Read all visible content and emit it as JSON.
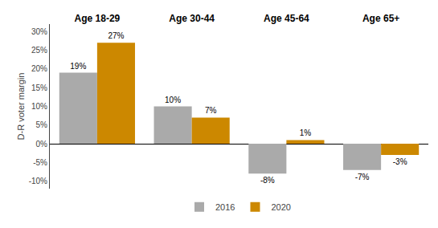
{
  "chart_data": {
    "type": "bar",
    "categories": [
      "Age 18-29",
      "Age 30-44",
      "Age 45-64",
      "Age 65+"
    ],
    "series": [
      {
        "name": "2016",
        "color": "#aaaaaa",
        "values": [
          19,
          10,
          -8,
          -7
        ],
        "value_labels": [
          "19%",
          "10%",
          "-8%",
          "-7%"
        ]
      },
      {
        "name": "2020",
        "color": "#CC8800",
        "values": [
          27,
          7,
          1,
          -3
        ],
        "value_labels": [
          "27%",
          "7%",
          "1%",
          "-3%"
        ]
      }
    ],
    "ylabel": "D-R voter margin",
    "ylim": [
      -12,
      32
    ],
    "yticks": [
      {
        "value": -10,
        "label": "-10%"
      },
      {
        "value": -5,
        "label": "-5%"
      },
      {
        "value": 0,
        "label": "0%"
      },
      {
        "value": 5,
        "label": "5%"
      },
      {
        "value": 10,
        "label": "10%"
      },
      {
        "value": 15,
        "label": "15%"
      },
      {
        "value": 20,
        "label": "20%"
      },
      {
        "value": 25,
        "label": "25%"
      },
      {
        "value": 30,
        "label": "30%"
      }
    ],
    "grid": false,
    "legend": "bottom",
    "data_labels": true
  }
}
